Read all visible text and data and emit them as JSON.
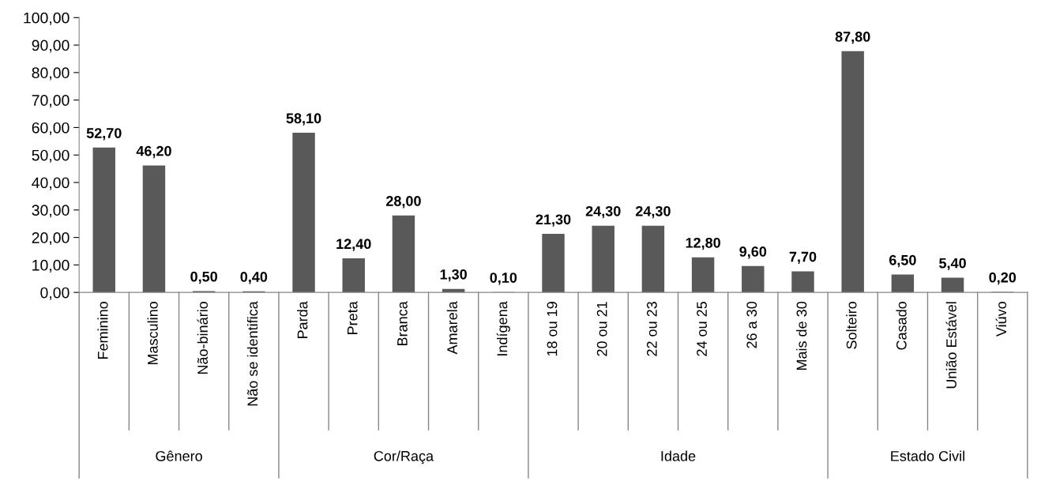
{
  "chart_data": {
    "type": "bar",
    "categories": [
      "Feminino",
      "Masculino",
      "Não-binário",
      "Não se identifica",
      "Parda",
      "Preta",
      "Branca",
      "Amarela",
      "Indígena",
      "18 ou 19",
      "20 ou 21",
      "22 ou 23",
      "24 ou 25",
      "26 a 30",
      "Mais de 30",
      "Solteiro",
      "Casado",
      "União Estável",
      "Viúvo"
    ],
    "values": [
      52.7,
      46.2,
      0.5,
      0.4,
      58.1,
      12.4,
      28.0,
      1.3,
      0.1,
      21.3,
      24.3,
      24.3,
      12.8,
      9.6,
      7.7,
      87.8,
      6.5,
      5.4,
      0.2
    ],
    "value_labels": [
      "52,70",
      "46,20",
      "0,50",
      "0,40",
      "58,10",
      "12,40",
      "28,00",
      "1,30",
      "0,10",
      "21,30",
      "24,30",
      "24,30",
      "12,80",
      "9,60",
      "7,70",
      "87,80",
      "6,50",
      "5,40",
      "0,20"
    ],
    "color": "#595959",
    "ylim": [
      0,
      100
    ],
    "yticks": [
      {
        "value": 0,
        "label": "0,00"
      },
      {
        "value": 10,
        "label": "10,00"
      },
      {
        "value": 20,
        "label": "20,00"
      },
      {
        "value": 30,
        "label": "30,00"
      },
      {
        "value": 40,
        "label": "40,00"
      },
      {
        "value": 50,
        "label": "50,00"
      },
      {
        "value": 60,
        "label": "60,00"
      },
      {
        "value": 70,
        "label": "70,00"
      },
      {
        "value": 80,
        "label": "80,00"
      },
      {
        "value": 90,
        "label": "90,00"
      },
      {
        "value": 100,
        "label": "100,00"
      }
    ],
    "grid": false,
    "annotations": [
      "Gênero",
      "Cor/Raça",
      "Idade",
      "Estado Civil"
    ]
  }
}
